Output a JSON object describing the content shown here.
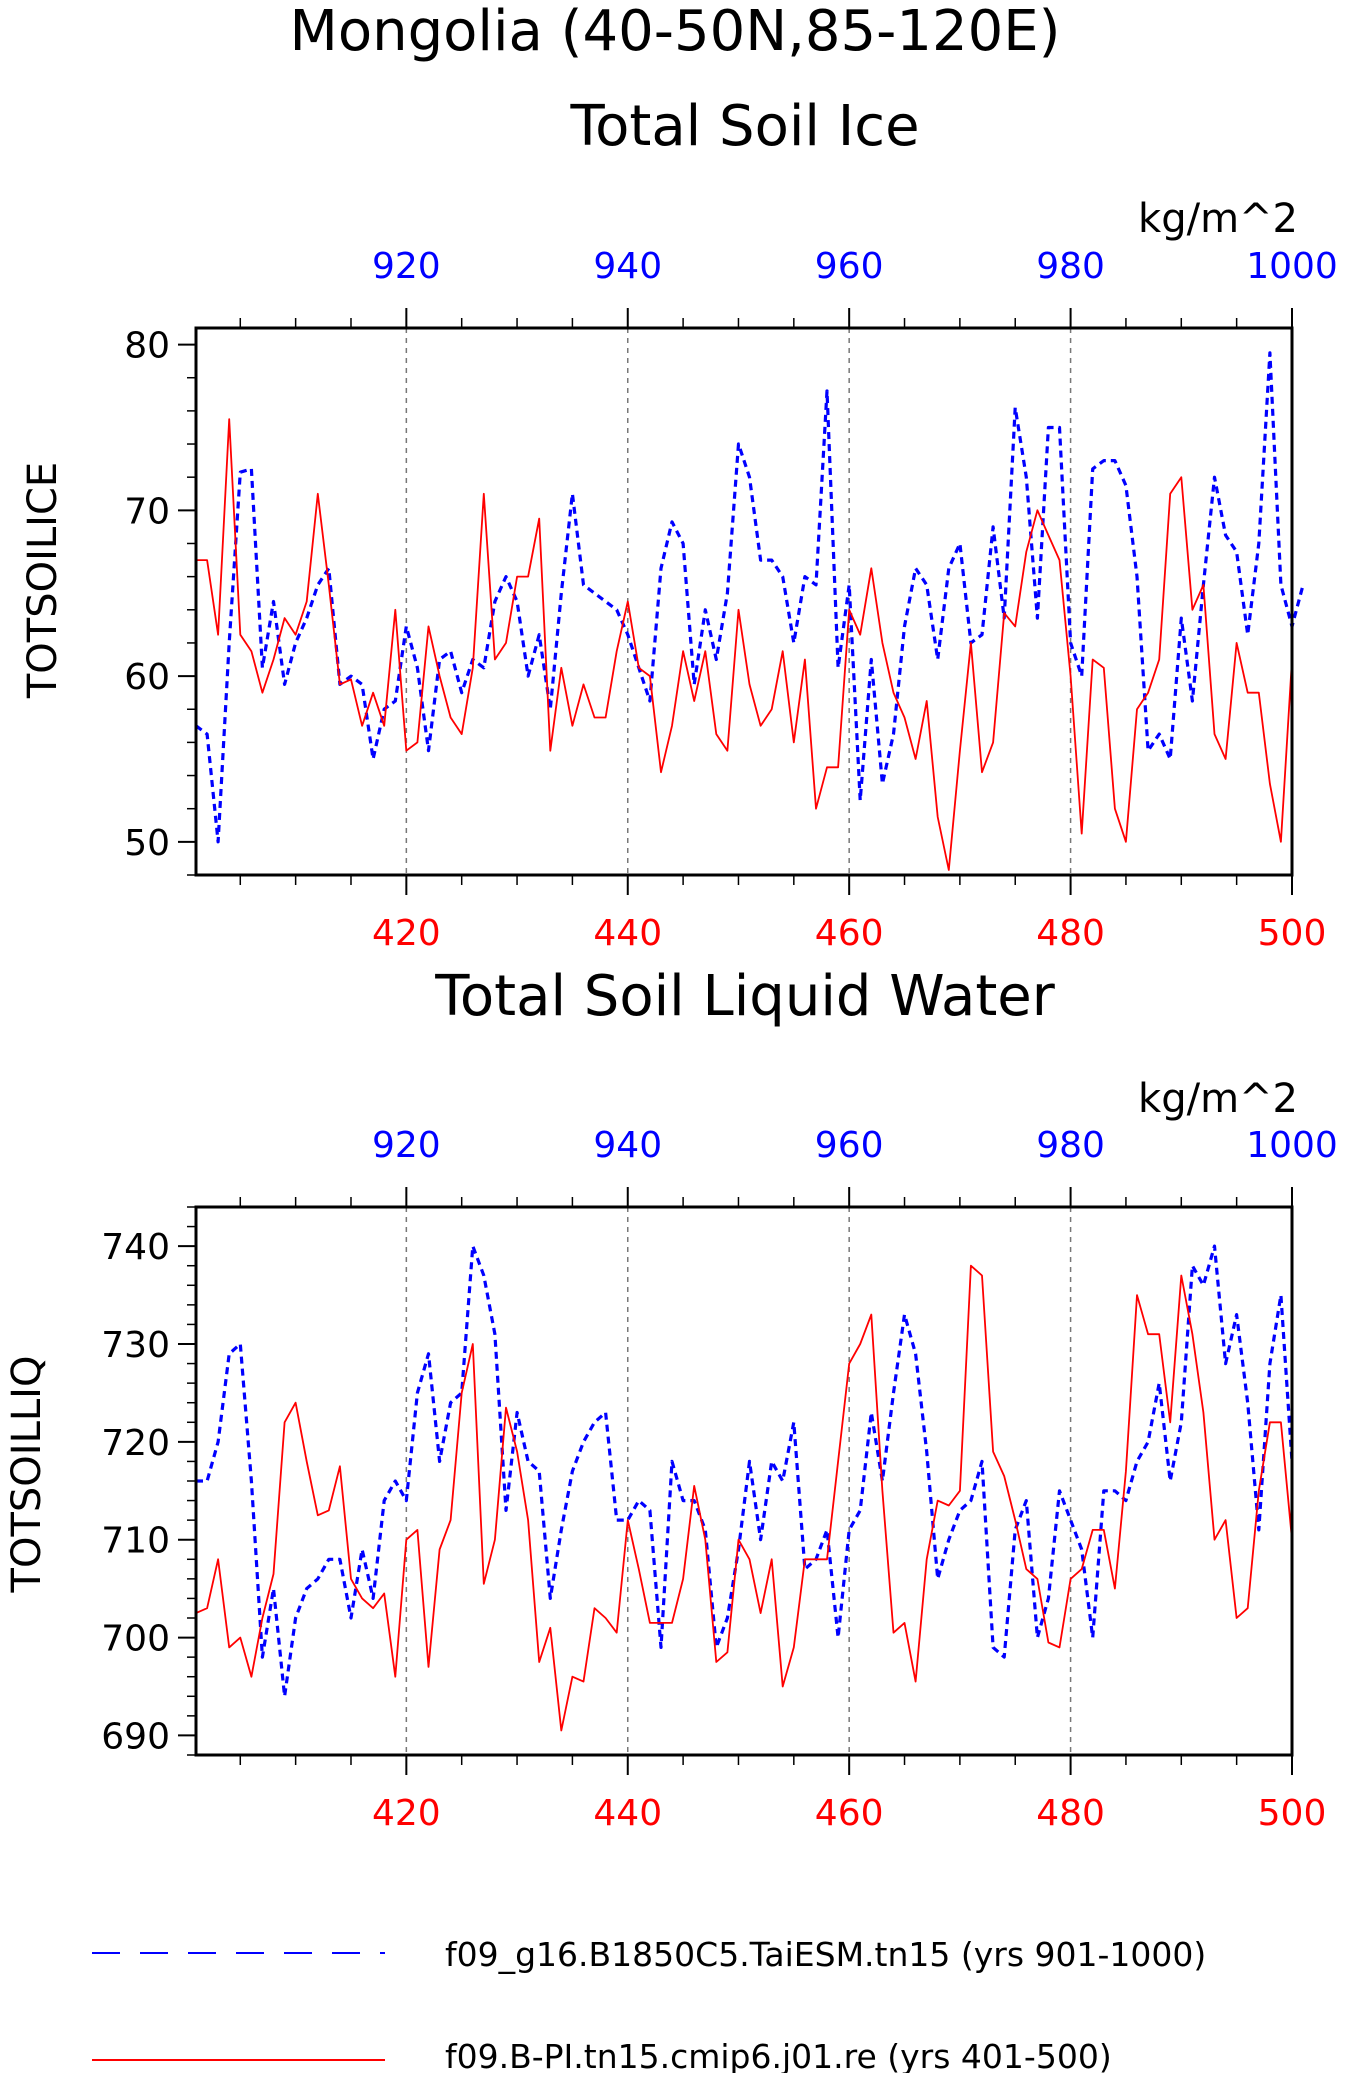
{
  "figure": {
    "title_line1": "Mongolia (40-50N,85-120E)",
    "legend": [
      {
        "label": "f09_g16.B1850C5.TaiESM.tn15 (yrs 901-1000)",
        "color": "#0000ff",
        "style": "dashed"
      },
      {
        "label": "f09.B-PI.tn15.cmip6.j01.re (yrs 401-500)",
        "color": "#ff0000",
        "style": "solid"
      }
    ]
  },
  "chart_data": [
    {
      "type": "line",
      "title": "Total Soil Ice",
      "units": "kg/m^2",
      "ylabel": "TOTSOILICE",
      "ylim": [
        48,
        81
      ],
      "yticks": [
        50,
        60,
        70,
        80
      ],
      "x_bottom": {
        "range": [
          401,
          500
        ],
        "ticks": [
          420,
          440,
          460,
          480,
          500
        ],
        "color": "#ff0000"
      },
      "x_top": {
        "range": [
          901,
          1000
        ],
        "ticks": [
          920,
          940,
          960,
          980,
          1000
        ],
        "color": "#0000ff"
      },
      "grid_x": [
        420,
        440,
        460,
        480
      ],
      "series": [
        {
          "name": "f09_g16.B1850C5.TaiESM.tn15 (yrs 901-1000)",
          "axis": "top",
          "color": "#0000ff",
          "style": "dashed",
          "x_start": 901,
          "values": [
            57,
            56.5,
            50,
            62,
            72.3,
            72.5,
            60.5,
            64.5,
            59.5,
            62,
            63.5,
            65.5,
            66.5,
            59.5,
            60,
            59.5,
            55,
            58,
            58.5,
            63,
            60.5,
            55.5,
            61,
            61.5,
            59,
            61,
            60.5,
            64.5,
            66,
            64.5,
            60,
            62.5,
            58,
            65,
            71,
            65.5,
            65,
            64.5,
            64,
            62.5,
            60.5,
            58.5,
            66.5,
            69.3,
            68,
            59.5,
            64,
            61,
            65,
            74,
            72,
            67,
            67,
            66,
            62,
            66,
            65.5,
            77.2,
            60.5,
            65.5,
            52.5,
            61,
            53.5,
            56.5,
            63,
            66.5,
            65.5,
            61,
            66.5,
            68,
            62,
            62.5,
            69,
            63.5,
            76.2,
            72,
            63.5,
            75,
            75,
            62,
            60,
            72.5,
            73,
            73,
            71.5,
            66,
            55.5,
            56.5,
            55,
            63.5,
            58.5,
            65.5,
            72,
            68.5,
            67.5,
            62.5,
            68,
            79.5,
            65.5,
            63,
            65.5
          ]
        },
        {
          "name": "f09.B-PI.tn15.cmip6.j01.re (yrs 401-500)",
          "axis": "bottom",
          "color": "#ff0000",
          "style": "solid",
          "x_start": 401,
          "values": [
            67,
            67,
            62.5,
            75.5,
            62.5,
            61.5,
            59,
            61,
            63.5,
            62.5,
            64.5,
            71,
            65.5,
            59.5,
            59.8,
            57,
            59,
            57,
            64,
            55.5,
            56,
            63,
            60,
            57.5,
            56.5,
            60.5,
            71,
            61,
            62,
            66,
            66,
            69.5,
            55.5,
            60.5,
            57,
            59.5,
            57.5,
            57.5,
            61.5,
            64.5,
            60.5,
            60,
            54.2,
            57,
            61.5,
            58.5,
            61.5,
            56.5,
            55.5,
            64,
            59.5,
            57,
            58,
            61.5,
            56,
            61,
            52,
            54.5,
            54.5,
            64,
            62.5,
            66.5,
            62,
            59,
            57.5,
            55,
            58.5,
            51.5,
            48.3,
            55.5,
            62,
            54.2,
            56,
            63.8,
            63,
            67.5,
            70,
            68.5,
            67,
            60,
            50.5,
            61,
            60.5,
            52,
            50,
            58,
            59,
            61,
            71,
            72,
            64,
            65.5,
            56.5,
            55,
            62,
            59,
            59,
            53.5,
            50,
            61
          ]
        }
      ]
    },
    {
      "type": "line",
      "title": "Total Soil Liquid Water",
      "units": "kg/m^2",
      "ylabel": "TOTSOILLIQ",
      "ylim": [
        688,
        744
      ],
      "yticks": [
        690,
        700,
        710,
        720,
        730,
        740
      ],
      "x_bottom": {
        "range": [
          401,
          500
        ],
        "ticks": [
          420,
          440,
          460,
          480,
          500
        ],
        "color": "#ff0000"
      },
      "x_top": {
        "range": [
          901,
          1000
        ],
        "ticks": [
          920,
          940,
          960,
          980,
          1000
        ],
        "color": "#0000ff"
      },
      "grid_x": [
        420,
        440,
        460,
        480
      ],
      "series": [
        {
          "name": "f09_g16.B1850C5.TaiESM.tn15 (yrs 901-1000)",
          "axis": "top",
          "color": "#0000ff",
          "style": "dashed",
          "x_start": 901,
          "values": [
            716,
            716,
            720,
            729,
            730,
            716,
            698,
            705,
            694,
            702,
            705,
            706,
            708,
            708,
            702,
            709,
            704,
            714,
            716,
            714,
            725,
            729,
            718,
            724,
            725,
            740,
            737,
            731,
            713,
            723,
            718,
            717,
            704,
            711,
            717,
            720,
            722,
            723,
            712,
            712,
            714,
            713,
            699,
            718,
            714,
            714,
            711,
            699,
            702,
            709,
            718,
            710,
            718,
            716,
            722,
            707,
            708,
            711,
            700,
            711,
            713,
            723,
            716,
            725,
            733,
            729,
            719,
            706,
            710,
            713,
            714,
            718,
            699,
            698,
            711,
            714,
            700,
            704,
            715,
            712,
            709,
            700,
            715,
            715,
            714,
            718,
            720,
            726,
            716,
            722,
            738,
            736,
            740,
            728,
            733,
            724,
            711,
            728,
            735,
            718
          ]
        },
        {
          "name": "f09.B-PI.tn15.cmip6.j01.re (yrs 401-500)",
          "axis": "bottom",
          "color": "#ff0000",
          "style": "solid",
          "x_start": 401,
          "values": [
            702.5,
            703,
            708,
            699,
            700,
            696,
            702,
            706.5,
            722,
            724,
            718,
            712.5,
            713,
            717.5,
            706,
            704,
            703,
            704.5,
            696,
            710,
            711,
            697,
            709,
            712,
            725,
            730,
            705.5,
            710,
            723.5,
            719,
            712,
            697.5,
            701,
            690.5,
            696,
            695.5,
            703,
            702,
            700.5,
            712,
            707,
            701.5,
            701.5,
            701.5,
            706,
            715.5,
            710,
            697.5,
            698.5,
            710,
            708,
            702.5,
            708,
            695,
            699,
            708,
            708,
            708,
            718,
            728,
            730,
            733,
            715,
            700.5,
            701.5,
            695.5,
            708,
            714,
            713.5,
            715,
            738,
            737,
            719,
            716.5,
            712,
            707,
            706,
            699.5,
            699,
            706,
            707,
            711,
            711,
            705,
            717,
            735,
            731,
            731,
            722,
            737,
            731,
            723,
            710,
            712,
            702,
            703,
            715,
            722,
            722,
            710
          ]
        }
      ]
    }
  ]
}
